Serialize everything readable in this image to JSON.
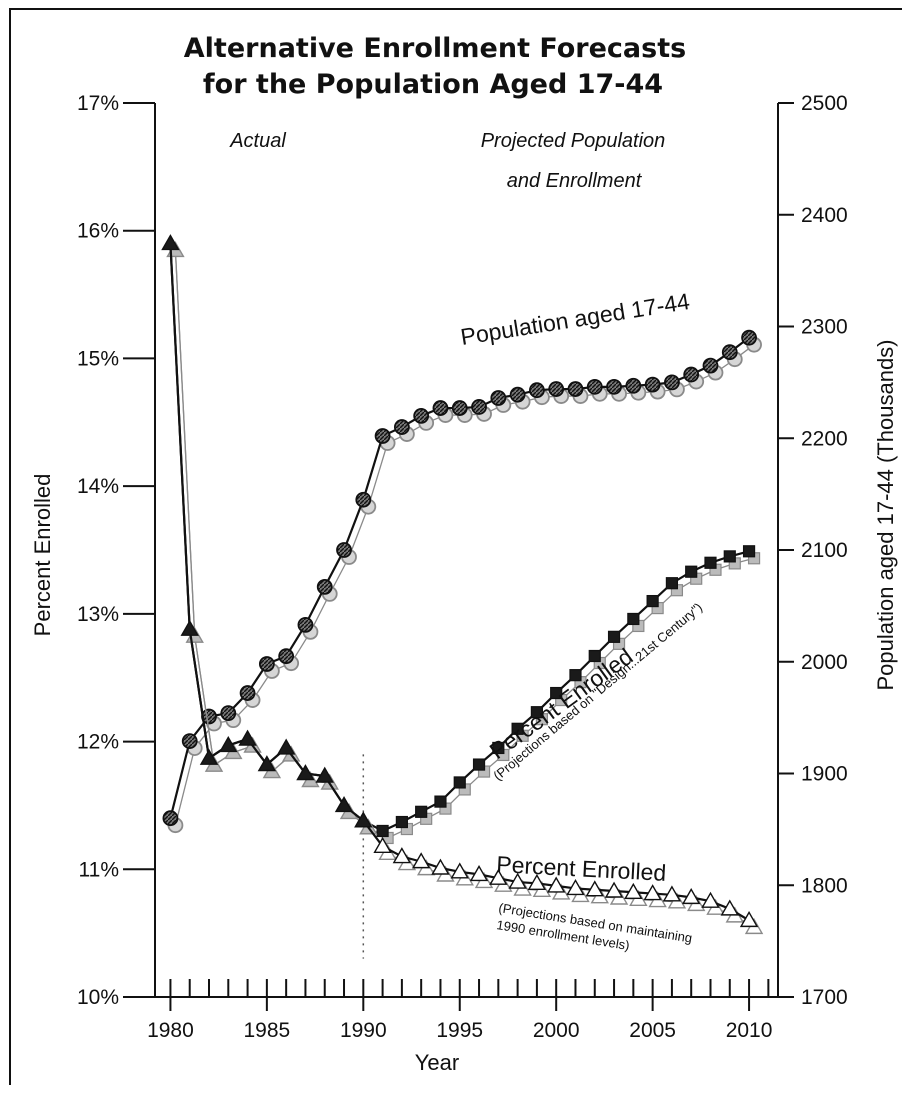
{
  "chart_data": {
    "type": "line",
    "title": "Alternative Enrollment Forecasts",
    "subtitle": "for the Population Aged 17-44",
    "xlabel": "Year",
    "ylabel_left": "Percent Enrolled",
    "ylabel_right": "Population aged 17-44 (Thousands)",
    "x_ticks": [
      "1980",
      "1985",
      "1990",
      "1995",
      "2000",
      "2005",
      "2010"
    ],
    "y_left_ticks": [
      "10%",
      "11%",
      "12%",
      "13%",
      "14%",
      "15%",
      "16%",
      "17%"
    ],
    "y_right_ticks": [
      "1700",
      "1800",
      "1900",
      "2000",
      "2100",
      "2200",
      "2300",
      "2400",
      "2500"
    ],
    "xlim": [
      1979.2,
      2011.5
    ],
    "ylim_left": [
      10,
      17
    ],
    "ylim_right": [
      1700,
      2500
    ],
    "region_labels": {
      "actual": "Actual",
      "projected_line1": "Projected Population",
      "projected_line2": "and Enrollment"
    },
    "annotations": {
      "population": "Population aged 17-44",
      "design_big": "Percent Enrolled",
      "design_small": "(Projections based on \"Design...21st Century\")",
      "maintain_big": "Percent Enrolled",
      "maintain_small1": "(Projections based on maintaining",
      "maintain_small2": "1990 enrollment levels)"
    },
    "series": [
      {
        "name": "Population aged 17-44",
        "axis": "right",
        "marker": "circle",
        "x": [
          1980,
          1981,
          1982,
          1983,
          1984,
          1985,
          1986,
          1987,
          1988,
          1989,
          1990,
          1991,
          1992,
          1993,
          1994,
          1995,
          1996,
          1997,
          1998,
          1999,
          2000,
          2001,
          2002,
          2003,
          2004,
          2005,
          2006,
          2007,
          2008,
          2009,
          2010
        ],
        "values": [
          1860,
          1929,
          1951,
          1954,
          1972,
          1998,
          2005,
          2033,
          2067,
          2100,
          2145,
          2202,
          2210,
          2220,
          2227,
          2227,
          2228,
          2236,
          2239,
          2243,
          2244,
          2244,
          2246,
          2246,
          2247,
          2248,
          2250,
          2257,
          2265,
          2277,
          2290
        ]
      },
      {
        "name": "Percent Enrolled (Projections based on \"Design...21st Century\")",
        "axis": "left",
        "marker": "square",
        "x": [
          1980,
          1981,
          1982,
          1983,
          1984,
          1985,
          1986,
          1987,
          1988,
          1989,
          1990,
          1991,
          1992,
          1993,
          1994,
          1995,
          1996,
          1997,
          1998,
          1999,
          2000,
          2001,
          2002,
          2003,
          2004,
          2005,
          2006,
          2007,
          2008,
          2009,
          2010
        ],
        "values": [
          15.9,
          12.88,
          11.87,
          11.97,
          12.02,
          11.82,
          11.95,
          11.75,
          11.73,
          11.5,
          11.38,
          11.3,
          11.37,
          11.45,
          11.53,
          11.68,
          11.82,
          11.95,
          12.1,
          12.23,
          12.38,
          12.52,
          12.67,
          12.82,
          12.96,
          13.1,
          13.24,
          13.33,
          13.4,
          13.45,
          13.49
        ]
      },
      {
        "name": "Percent Enrolled (Projections based on maintaining 1990 enrollment levels)",
        "axis": "left",
        "marker": "triangle",
        "x": [
          1980,
          1981,
          1982,
          1983,
          1984,
          1985,
          1986,
          1987,
          1988,
          1989,
          1990,
          1991,
          1992,
          1993,
          1994,
          1995,
          1996,
          1997,
          1998,
          1999,
          2000,
          2001,
          2002,
          2003,
          2004,
          2005,
          2006,
          2007,
          2008,
          2009,
          2010
        ],
        "values": [
          15.9,
          12.88,
          11.87,
          11.97,
          12.02,
          11.82,
          11.95,
          11.75,
          11.73,
          11.5,
          11.38,
          11.18,
          11.1,
          11.06,
          11.01,
          10.98,
          10.96,
          10.93,
          10.9,
          10.89,
          10.87,
          10.85,
          10.84,
          10.83,
          10.82,
          10.81,
          10.8,
          10.78,
          10.75,
          10.69,
          10.6
        ]
      }
    ]
  }
}
